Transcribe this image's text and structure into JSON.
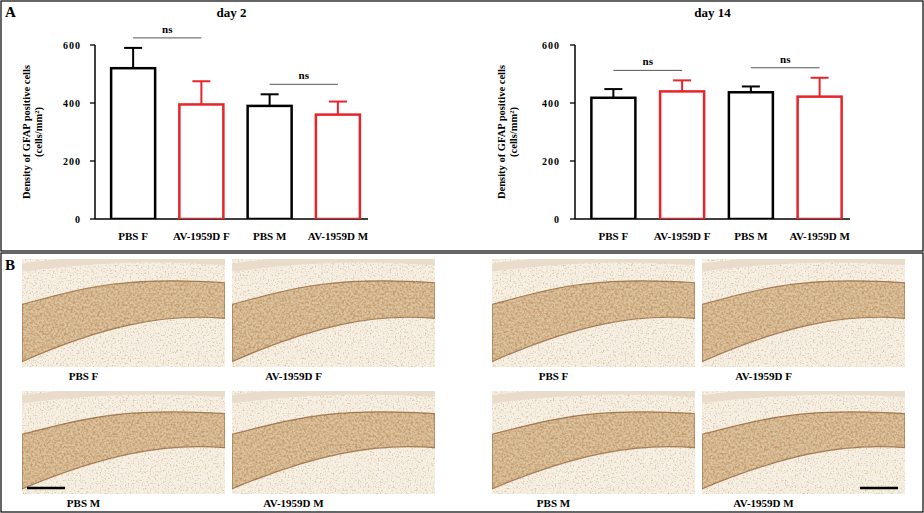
{
  "chart_data": [
    {
      "type": "bar",
      "title": "day 2",
      "ylabel": [
        "Density of GFAP positive cells",
        "(cells/mm²)"
      ],
      "categories": [
        "PBS F",
        "AV-1959D F",
        "PBS M",
        "AV-1959D M"
      ],
      "values": [
        520,
        395,
        390,
        360
      ],
      "errors": [
        70,
        80,
        40,
        45
      ],
      "colors": [
        "#000000",
        "#e8232a",
        "#000000",
        "#e8232a"
      ],
      "ylim": [
        0,
        600
      ],
      "yticks": [
        0,
        200,
        400,
        600
      ],
      "annotations": [
        {
          "text": "ns",
          "categories": [
            "PBS F",
            "AV-1959D F"
          ]
        },
        {
          "text": "ns",
          "categories": [
            "PBS M",
            "AV-1959D M"
          ]
        }
      ]
    },
    {
      "type": "bar",
      "title": "day 14",
      "ylabel": [
        "Density of GFAP positive cells",
        "(cells/mm²)"
      ],
      "categories": [
        "PBS F",
        "AV-1959D F",
        "PBS M",
        "AV-1959D M"
      ],
      "values": [
        418,
        440,
        437,
        422
      ],
      "errors": [
        30,
        38,
        20,
        65
      ],
      "colors": [
        "#000000",
        "#e8232a",
        "#000000",
        "#e8232a"
      ],
      "ylim": [
        0,
        600
      ],
      "yticks": [
        0,
        200,
        400,
        600
      ],
      "annotations": [
        {
          "text": "ns",
          "categories": [
            "PBS F",
            "AV-1959D F"
          ]
        },
        {
          "text": "ns",
          "categories": [
            "PBS M",
            "AV-1959D M"
          ]
        }
      ]
    }
  ],
  "panel_labels": [
    "A",
    "B"
  ],
  "micrographs": [
    {
      "captions": [
        "PBS F",
        "AV-1959D F",
        "PBS M",
        "AV-1959D M"
      ]
    },
    {
      "captions": [
        "PBS F",
        "AV-1959D F",
        "PBS M",
        "AV-1959D M"
      ]
    }
  ]
}
